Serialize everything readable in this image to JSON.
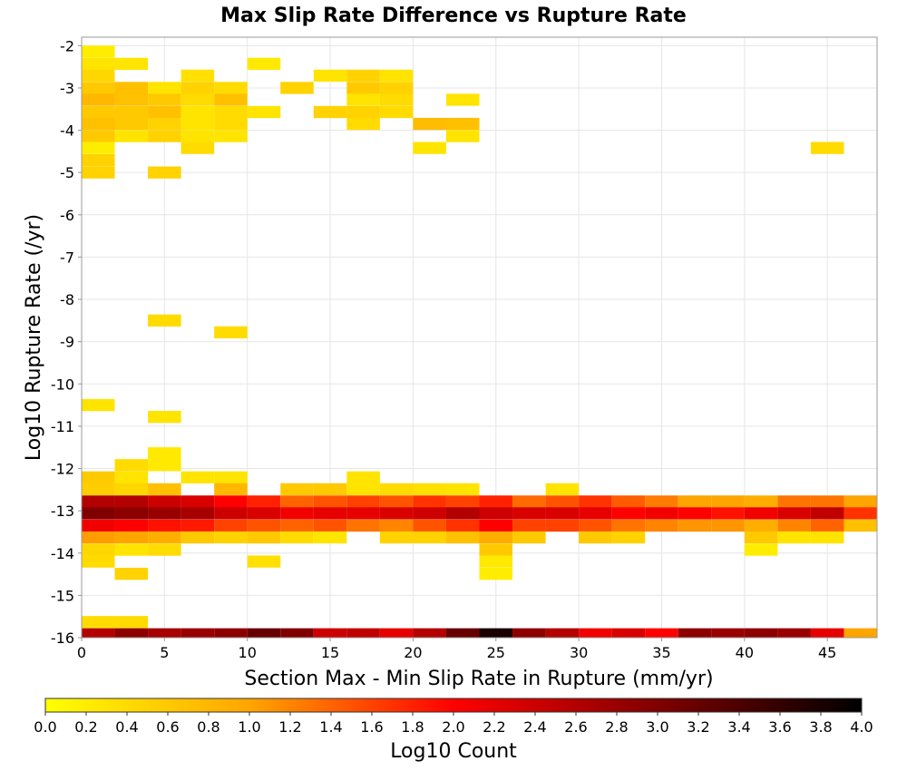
{
  "chart_data": {
    "type": "heatmap",
    "title": "Max Slip Rate Difference vs Rupture Rate",
    "xlabel": "Section Max - Min Slip Rate in Rupture (mm/yr)",
    "ylabel": "Log10 Rupture Rate (/yr)",
    "xlim": [
      0,
      48
    ],
    "ylim": [
      -16,
      -1.8
    ],
    "x_ticks": [
      "0",
      "5",
      "10",
      "15",
      "20",
      "25",
      "30",
      "35",
      "40",
      "45"
    ],
    "y_ticks": [
      "-2",
      "-3",
      "-4",
      "-5",
      "-6",
      "-7",
      "-8",
      "-9",
      "-10",
      "-11",
      "-12",
      "-13",
      "-14",
      "-15",
      "-16"
    ],
    "grid": true,
    "x_bin_width": 2,
    "y_bin_width": 0.285,
    "colorbar": {
      "label": "Log10 Count",
      "range": [
        0,
        4
      ],
      "ticks": [
        "0.0",
        "0.2",
        "0.4",
        "0.6",
        "0.8",
        "1.0",
        "1.2",
        "1.4",
        "1.6",
        "1.8",
        "2.0",
        "2.2",
        "2.4",
        "2.6",
        "2.8",
        "3.0",
        "3.2",
        "3.4",
        "3.6",
        "3.8",
        "4.0"
      ],
      "colors": [
        "#ffff00",
        "#ffa500",
        "#ff0000",
        "#800000",
        "#000000"
      ]
    },
    "cells": [
      [
        1,
        -2.14,
        0.2
      ],
      [
        1,
        -2.43,
        0.3
      ],
      [
        3,
        -2.43,
        0.3
      ],
      [
        11,
        -2.43,
        0.25
      ],
      [
        1,
        -2.71,
        0.45
      ],
      [
        7,
        -2.71,
        0.35
      ],
      [
        15,
        -2.71,
        0.3
      ],
      [
        17,
        -2.71,
        0.5
      ],
      [
        19,
        -2.71,
        0.3
      ],
      [
        1,
        -3.0,
        0.6
      ],
      [
        3,
        -3.0,
        0.7
      ],
      [
        5,
        -3.0,
        0.3
      ],
      [
        7,
        -3.0,
        0.5
      ],
      [
        9,
        -3.0,
        0.4
      ],
      [
        13,
        -3.0,
        0.5
      ],
      [
        17,
        -3.0,
        0.6
      ],
      [
        19,
        -3.0,
        0.5
      ],
      [
        1,
        -3.28,
        0.8
      ],
      [
        3,
        -3.28,
        0.7
      ],
      [
        5,
        -3.28,
        0.6
      ],
      [
        7,
        -3.28,
        0.4
      ],
      [
        9,
        -3.28,
        0.7
      ],
      [
        17,
        -3.28,
        0.3
      ],
      [
        19,
        -3.28,
        0.4
      ],
      [
        23,
        -3.28,
        0.3
      ],
      [
        1,
        -3.57,
        0.6
      ],
      [
        3,
        -3.57,
        0.6
      ],
      [
        5,
        -3.57,
        0.7
      ],
      [
        7,
        -3.57,
        0.3
      ],
      [
        9,
        -3.57,
        0.4
      ],
      [
        11,
        -3.57,
        0.3
      ],
      [
        15,
        -3.57,
        0.5
      ],
      [
        17,
        -3.57,
        0.5
      ],
      [
        19,
        -3.57,
        0.4
      ],
      [
        1,
        -3.85,
        0.7
      ],
      [
        3,
        -3.85,
        0.6
      ],
      [
        5,
        -3.85,
        0.5
      ],
      [
        7,
        -3.85,
        0.3
      ],
      [
        9,
        -3.85,
        0.4
      ],
      [
        17,
        -3.85,
        0.4
      ],
      [
        21,
        -3.85,
        0.75
      ],
      [
        23,
        -3.85,
        0.7
      ],
      [
        1,
        -4.14,
        0.6
      ],
      [
        3,
        -4.14,
        0.3
      ],
      [
        5,
        -4.14,
        0.5
      ],
      [
        7,
        -4.14,
        0.3
      ],
      [
        9,
        -4.14,
        0.3
      ],
      [
        23,
        -4.14,
        0.3
      ],
      [
        1,
        -4.42,
        0.2
      ],
      [
        7,
        -4.42,
        0.4
      ],
      [
        21,
        -4.42,
        0.3
      ],
      [
        45,
        -4.42,
        0.4
      ],
      [
        1,
        -4.71,
        0.5
      ],
      [
        1,
        -5.0,
        0.5
      ],
      [
        5,
        -5.0,
        0.5
      ],
      [
        5,
        -8.5,
        0.4
      ],
      [
        9,
        -8.78,
        0.4
      ],
      [
        1,
        -10.5,
        0.3
      ],
      [
        5,
        -10.78,
        0.3
      ],
      [
        5,
        -11.64,
        0.25
      ],
      [
        3,
        -11.92,
        0.4
      ],
      [
        5,
        -11.92,
        0.25
      ],
      [
        1,
        -12.21,
        0.6
      ],
      [
        3,
        -12.21,
        0.3
      ],
      [
        7,
        -12.21,
        0.3
      ],
      [
        9,
        -12.21,
        0.3
      ],
      [
        17,
        -12.21,
        0.3
      ],
      [
        1,
        -12.49,
        0.55
      ],
      [
        3,
        -12.49,
        0.45
      ],
      [
        5,
        -12.49,
        0.7
      ],
      [
        9,
        -12.49,
        0.8
      ],
      [
        13,
        -12.49,
        0.6
      ],
      [
        15,
        -12.49,
        0.6
      ],
      [
        17,
        -12.49,
        0.3
      ],
      [
        19,
        -12.49,
        0.4
      ],
      [
        21,
        -12.49,
        0.35
      ],
      [
        23,
        -12.49,
        0.3
      ],
      [
        29,
        -12.49,
        0.3
      ],
      [
        1,
        -12.78,
        2.6
      ],
      [
        3,
        -12.78,
        2.6
      ],
      [
        5,
        -12.78,
        2.4
      ],
      [
        7,
        -12.78,
        2.3
      ],
      [
        9,
        -12.78,
        2.0
      ],
      [
        11,
        -12.78,
        1.8
      ],
      [
        13,
        -12.78,
        1.4
      ],
      [
        15,
        -12.78,
        1.5
      ],
      [
        17,
        -12.78,
        1.6
      ],
      [
        19,
        -12.78,
        1.5
      ],
      [
        21,
        -12.78,
        1.7
      ],
      [
        23,
        -12.78,
        1.6
      ],
      [
        25,
        -12.78,
        1.8
      ],
      [
        27,
        -12.78,
        1.35
      ],
      [
        29,
        -12.78,
        1.5
      ],
      [
        31,
        -12.78,
        1.7
      ],
      [
        33,
        -12.78,
        1.45
      ],
      [
        35,
        -12.78,
        1.25
      ],
      [
        37,
        -12.78,
        1.0
      ],
      [
        39,
        -12.78,
        1.0
      ],
      [
        41,
        -12.78,
        0.9
      ],
      [
        43,
        -12.78,
        1.3
      ],
      [
        45,
        -12.78,
        1.3
      ],
      [
        47,
        -12.78,
        1.0
      ],
      [
        1,
        -13.06,
        3.0
      ],
      [
        3,
        -13.06,
        2.9
      ],
      [
        5,
        -13.06,
        2.8
      ],
      [
        7,
        -13.06,
        2.7
      ],
      [
        9,
        -13.06,
        2.4
      ],
      [
        11,
        -13.06,
        2.3
      ],
      [
        13,
        -13.06,
        2.1
      ],
      [
        15,
        -13.06,
        2.2
      ],
      [
        17,
        -13.06,
        2.2
      ],
      [
        19,
        -13.06,
        2.3
      ],
      [
        21,
        -13.06,
        2.4
      ],
      [
        23,
        -13.06,
        2.6
      ],
      [
        25,
        -13.06,
        2.4
      ],
      [
        27,
        -13.06,
        2.3
      ],
      [
        29,
        -13.06,
        2.3
      ],
      [
        31,
        -13.06,
        2.2
      ],
      [
        33,
        -13.06,
        2.0
      ],
      [
        35,
        -13.06,
        2.1
      ],
      [
        37,
        -13.06,
        2.0
      ],
      [
        39,
        -13.06,
        1.9
      ],
      [
        41,
        -13.06,
        2.1
      ],
      [
        43,
        -13.06,
        2.3
      ],
      [
        45,
        -13.06,
        2.5
      ],
      [
        47,
        -13.06,
        1.7
      ],
      [
        1,
        -13.35,
        2.1
      ],
      [
        3,
        -13.35,
        2.0
      ],
      [
        5,
        -13.35,
        1.9
      ],
      [
        7,
        -13.35,
        1.85
      ],
      [
        9,
        -13.35,
        1.6
      ],
      [
        11,
        -13.35,
        1.5
      ],
      [
        13,
        -13.35,
        1.4
      ],
      [
        15,
        -13.35,
        1.5
      ],
      [
        17,
        -13.35,
        1.3
      ],
      [
        19,
        -13.35,
        1.2
      ],
      [
        21,
        -13.35,
        1.5
      ],
      [
        23,
        -13.35,
        1.7
      ],
      [
        25,
        -13.35,
        2.0
      ],
      [
        27,
        -13.35,
        1.6
      ],
      [
        29,
        -13.35,
        1.6
      ],
      [
        31,
        -13.35,
        1.5
      ],
      [
        33,
        -13.35,
        1.3
      ],
      [
        35,
        -13.35,
        1.2
      ],
      [
        37,
        -13.35,
        1.1
      ],
      [
        39,
        -13.35,
        1.1
      ],
      [
        41,
        -13.35,
        0.9
      ],
      [
        43,
        -13.35,
        1.2
      ],
      [
        45,
        -13.35,
        1.4
      ],
      [
        47,
        -13.35,
        0.7
      ],
      [
        1,
        -13.63,
        1.05
      ],
      [
        3,
        -13.63,
        1.0
      ],
      [
        5,
        -13.63,
        0.9
      ],
      [
        7,
        -13.63,
        0.6
      ],
      [
        9,
        -13.63,
        0.5
      ],
      [
        11,
        -13.63,
        0.6
      ],
      [
        13,
        -13.63,
        0.4
      ],
      [
        15,
        -13.63,
        0.3
      ],
      [
        19,
        -13.63,
        0.5
      ],
      [
        21,
        -13.63,
        0.5
      ],
      [
        23,
        -13.63,
        0.7
      ],
      [
        25,
        -13.63,
        0.9
      ],
      [
        27,
        -13.63,
        0.6
      ],
      [
        31,
        -13.63,
        0.6
      ],
      [
        33,
        -13.63,
        0.5
      ],
      [
        41,
        -13.63,
        0.6
      ],
      [
        43,
        -13.63,
        0.3
      ],
      [
        45,
        -13.63,
        0.3
      ],
      [
        1,
        -13.92,
        0.45
      ],
      [
        3,
        -13.92,
        0.3
      ],
      [
        5,
        -13.92,
        0.4
      ],
      [
        25,
        -13.92,
        0.6
      ],
      [
        41,
        -13.92,
        0.2
      ],
      [
        1,
        -14.2,
        0.4
      ],
      [
        11,
        -14.2,
        0.35
      ],
      [
        25,
        -14.2,
        0.25
      ],
      [
        3,
        -14.49,
        0.5
      ],
      [
        25,
        -14.49,
        0.2
      ],
      [
        1,
        -15.63,
        0.4
      ],
      [
        3,
        -15.63,
        0.4
      ],
      [
        1,
        -15.92,
        2.6
      ],
      [
        3,
        -15.92,
        2.9
      ],
      [
        5,
        -15.92,
        2.7
      ],
      [
        7,
        -15.92,
        2.8
      ],
      [
        9,
        -15.92,
        2.9
      ],
      [
        11,
        -15.92,
        3.2
      ],
      [
        13,
        -15.92,
        3.0
      ],
      [
        15,
        -15.92,
        2.4
      ],
      [
        17,
        -15.92,
        2.5
      ],
      [
        19,
        -15.92,
        2.2
      ],
      [
        21,
        -15.92,
        2.6
      ],
      [
        23,
        -15.92,
        3.2
      ],
      [
        25,
        -15.92,
        3.8
      ],
      [
        27,
        -15.92,
        2.9
      ],
      [
        29,
        -15.92,
        2.6
      ],
      [
        31,
        -15.92,
        2.1
      ],
      [
        33,
        -15.92,
        2.3
      ],
      [
        35,
        -15.92,
        2.0
      ],
      [
        37,
        -15.92,
        2.9
      ],
      [
        39,
        -15.92,
        2.8
      ],
      [
        41,
        -15.92,
        2.9
      ],
      [
        43,
        -15.92,
        2.8
      ],
      [
        45,
        -15.92,
        2.2
      ],
      [
        47,
        -15.92,
        1.0
      ]
    ]
  }
}
